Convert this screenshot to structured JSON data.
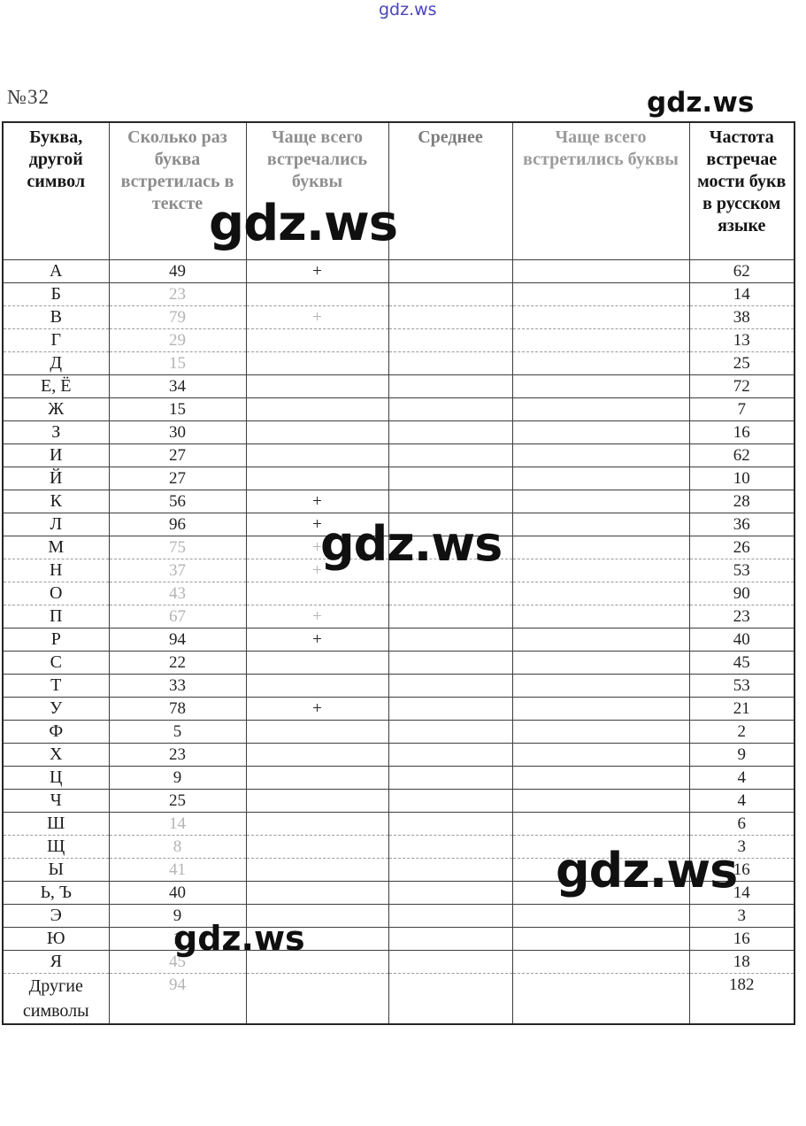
{
  "page": {
    "problem_number": "№32"
  },
  "watermark": {
    "text": "gdz.ws"
  },
  "table": {
    "headers": [
      "Буква, другой символ",
      "Сколько раз буква встретилась в тексте",
      "Чаще всего встречались буквы",
      "Среднее",
      "Чаще всего встретились буквы",
      "Частота встречае мости букв в русском языке"
    ],
    "rows": [
      {
        "letter": "А",
        "count": "49",
        "mark": "+",
        "average": "",
        "mark2": "",
        "frequency": "62",
        "faded": false
      },
      {
        "letter": "Б",
        "count": "23",
        "mark": "",
        "average": "",
        "mark2": "",
        "frequency": "14",
        "faded": true
      },
      {
        "letter": "В",
        "count": "79",
        "mark": "+",
        "average": "",
        "mark2": "",
        "frequency": "38",
        "faded": true
      },
      {
        "letter": "Г",
        "count": "29",
        "mark": "",
        "average": "",
        "mark2": "",
        "frequency": "13",
        "faded": true
      },
      {
        "letter": "Д",
        "count": "15",
        "mark": "",
        "average": "",
        "mark2": "",
        "frequency": "25",
        "faded": true
      },
      {
        "letter": "Е, Ё",
        "count": "34",
        "mark": "",
        "average": "",
        "mark2": "",
        "frequency": "72",
        "faded": false
      },
      {
        "letter": "Ж",
        "count": "15",
        "mark": "",
        "average": "",
        "mark2": "",
        "frequency": "7",
        "faded": false
      },
      {
        "letter": "З",
        "count": "30",
        "mark": "",
        "average": "",
        "mark2": "",
        "frequency": "16",
        "faded": false
      },
      {
        "letter": "И",
        "count": "27",
        "mark": "",
        "average": "",
        "mark2": "",
        "frequency": "62",
        "faded": false
      },
      {
        "letter": "Й",
        "count": "27",
        "mark": "",
        "average": "",
        "mark2": "",
        "frequency": "10",
        "faded": false
      },
      {
        "letter": "К",
        "count": "56",
        "mark": "+",
        "average": "",
        "mark2": "",
        "frequency": "28",
        "faded": false
      },
      {
        "letter": "Л",
        "count": "96",
        "mark": "+",
        "average": "",
        "mark2": "",
        "frequency": "36",
        "faded": false
      },
      {
        "letter": "М",
        "count": "75",
        "mark": "+",
        "average": "",
        "mark2": "",
        "frequency": "26",
        "faded": true
      },
      {
        "letter": "Н",
        "count": "37",
        "mark": "+",
        "average": "",
        "mark2": "",
        "frequency": "53",
        "faded": true
      },
      {
        "letter": "О",
        "count": "43",
        "mark": "",
        "average": "",
        "mark2": "",
        "frequency": "90",
        "faded": true
      },
      {
        "letter": "П",
        "count": "67",
        "mark": "+",
        "average": "",
        "mark2": "",
        "frequency": "23",
        "faded": true
      },
      {
        "letter": "Р",
        "count": "94",
        "mark": "+",
        "average": "",
        "mark2": "",
        "frequency": "40",
        "faded": false
      },
      {
        "letter": "С",
        "count": "22",
        "mark": "",
        "average": "",
        "mark2": "",
        "frequency": "45",
        "faded": false
      },
      {
        "letter": "Т",
        "count": "33",
        "mark": "",
        "average": "",
        "mark2": "",
        "frequency": "53",
        "faded": false
      },
      {
        "letter": "У",
        "count": "78",
        "mark": "+",
        "average": "",
        "mark2": "",
        "frequency": "21",
        "faded": false
      },
      {
        "letter": "Ф",
        "count": "5",
        "mark": "",
        "average": "",
        "mark2": "",
        "frequency": "2",
        "faded": false
      },
      {
        "letter": "Х",
        "count": "23",
        "mark": "",
        "average": "",
        "mark2": "",
        "frequency": "9",
        "faded": false
      },
      {
        "letter": "Ц",
        "count": "9",
        "mark": "",
        "average": "",
        "mark2": "",
        "frequency": "4",
        "faded": false
      },
      {
        "letter": "Ч",
        "count": "25",
        "mark": "",
        "average": "",
        "mark2": "",
        "frequency": "4",
        "faded": false
      },
      {
        "letter": "Ш",
        "count": "14",
        "mark": "",
        "average": "",
        "mark2": "",
        "frequency": "6",
        "faded": true
      },
      {
        "letter": "Щ",
        "count": "8",
        "mark": "",
        "average": "",
        "mark2": "",
        "frequency": "3",
        "faded": true
      },
      {
        "letter": "Ы",
        "count": "41",
        "mark": "",
        "average": "",
        "mark2": "",
        "frequency": "16",
        "faded": true
      },
      {
        "letter": "Ь, Ъ",
        "count": "40",
        "mark": "",
        "average": "",
        "mark2": "",
        "frequency": "14",
        "faded": false
      },
      {
        "letter": "Э",
        "count": "9",
        "mark": "",
        "average": "",
        "mark2": "",
        "frequency": "3",
        "faded": false
      },
      {
        "letter": "Ю",
        "count": "1",
        "mark": "",
        "average": "",
        "mark2": "",
        "frequency": "16",
        "faded": false
      },
      {
        "letter": "Я",
        "count": "45",
        "mark": "",
        "average": "",
        "mark2": "",
        "frequency": "18",
        "faded": true
      },
      {
        "letter": "Другие символы",
        "count": "94",
        "mark": "",
        "average": "",
        "mark2": "",
        "frequency": "182",
        "faded": true
      }
    ]
  }
}
